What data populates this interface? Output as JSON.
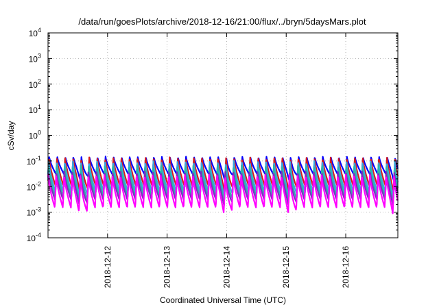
{
  "chart_data": {
    "type": "line",
    "title": "/data/run/goesPlots/archive/2018-12-16/21:00/flux/../bryn/5daysMars.plot",
    "xlabel": "Coordinated Universal Time (UTC)",
    "ylabel": "cSv/day",
    "yscale": "log",
    "ylim": [
      0.0001,
      10000
    ],
    "y_ticks": [
      {
        "base": "10",
        "exp": "-4",
        "value": 0.0001
      },
      {
        "base": "10",
        "exp": "-3",
        "value": 0.001
      },
      {
        "base": "10",
        "exp": "-2",
        "value": 0.01
      },
      {
        "base": "10",
        "exp": "-1",
        "value": 0.1
      },
      {
        "base": "10",
        "exp": "0",
        "value": 1
      },
      {
        "base": "10",
        "exp": "1",
        "value": 10
      },
      {
        "base": "10",
        "exp": "2",
        "value": 100
      },
      {
        "base": "10",
        "exp": "3",
        "value": 1000
      },
      {
        "base": "10",
        "exp": "4",
        "value": 10000
      }
    ],
    "xlim": [
      "2018-12-11T00:00",
      "2018-12-16T21:00"
    ],
    "x_ticks": [
      "2018-12-12",
      "2018-12-13",
      "2018-12-14",
      "2018-12-15",
      "2018-12-16"
    ],
    "grid": true,
    "legend": "none",
    "series": [
      {
        "color": "#0000ff",
        "peak": 0.15,
        "trough": 0.03
      },
      {
        "color": "#d81b1b",
        "peak": 0.14,
        "trough": 0.01
      },
      {
        "color": "#3aa8e0",
        "peak": 0.1,
        "trough": 0.006
      },
      {
        "color": "#2bb8a8",
        "peak": 0.07,
        "trough": 0.004
      },
      {
        "color": "#7a2fbf",
        "peak": 0.04,
        "trough": 0.003
      },
      {
        "color": "#ff00ff",
        "peak": 0.03,
        "trough": 0.0015
      }
    ],
    "oscillation": {
      "cycles_per_day": 7.4,
      "min_dip_dates": [
        "2018-12-11T14:00",
        "2018-12-14T00:00",
        "2018-12-15T02:00",
        "2018-12-16T20:00"
      ]
    }
  }
}
